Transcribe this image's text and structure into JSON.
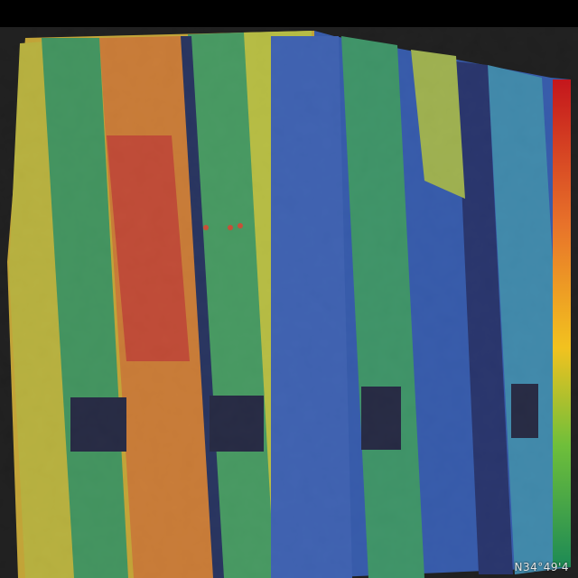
{
  "image": {
    "subject": "thermal",
    "palette": {
      "cold": "#0b2a8a",
      "cool": "#1f5fd0",
      "mid": "#27a050",
      "warm": "#d8d020",
      "hot": "#e08a1a",
      "hottest": "#d41f1f"
    }
  },
  "overlay": {
    "coordinate_label": "N34°49'4"
  },
  "scale_bar": {
    "colors": [
      "#c4161c",
      "#e8732a",
      "#f2c21f",
      "#6fbf3a",
      "#1d8a55"
    ]
  }
}
